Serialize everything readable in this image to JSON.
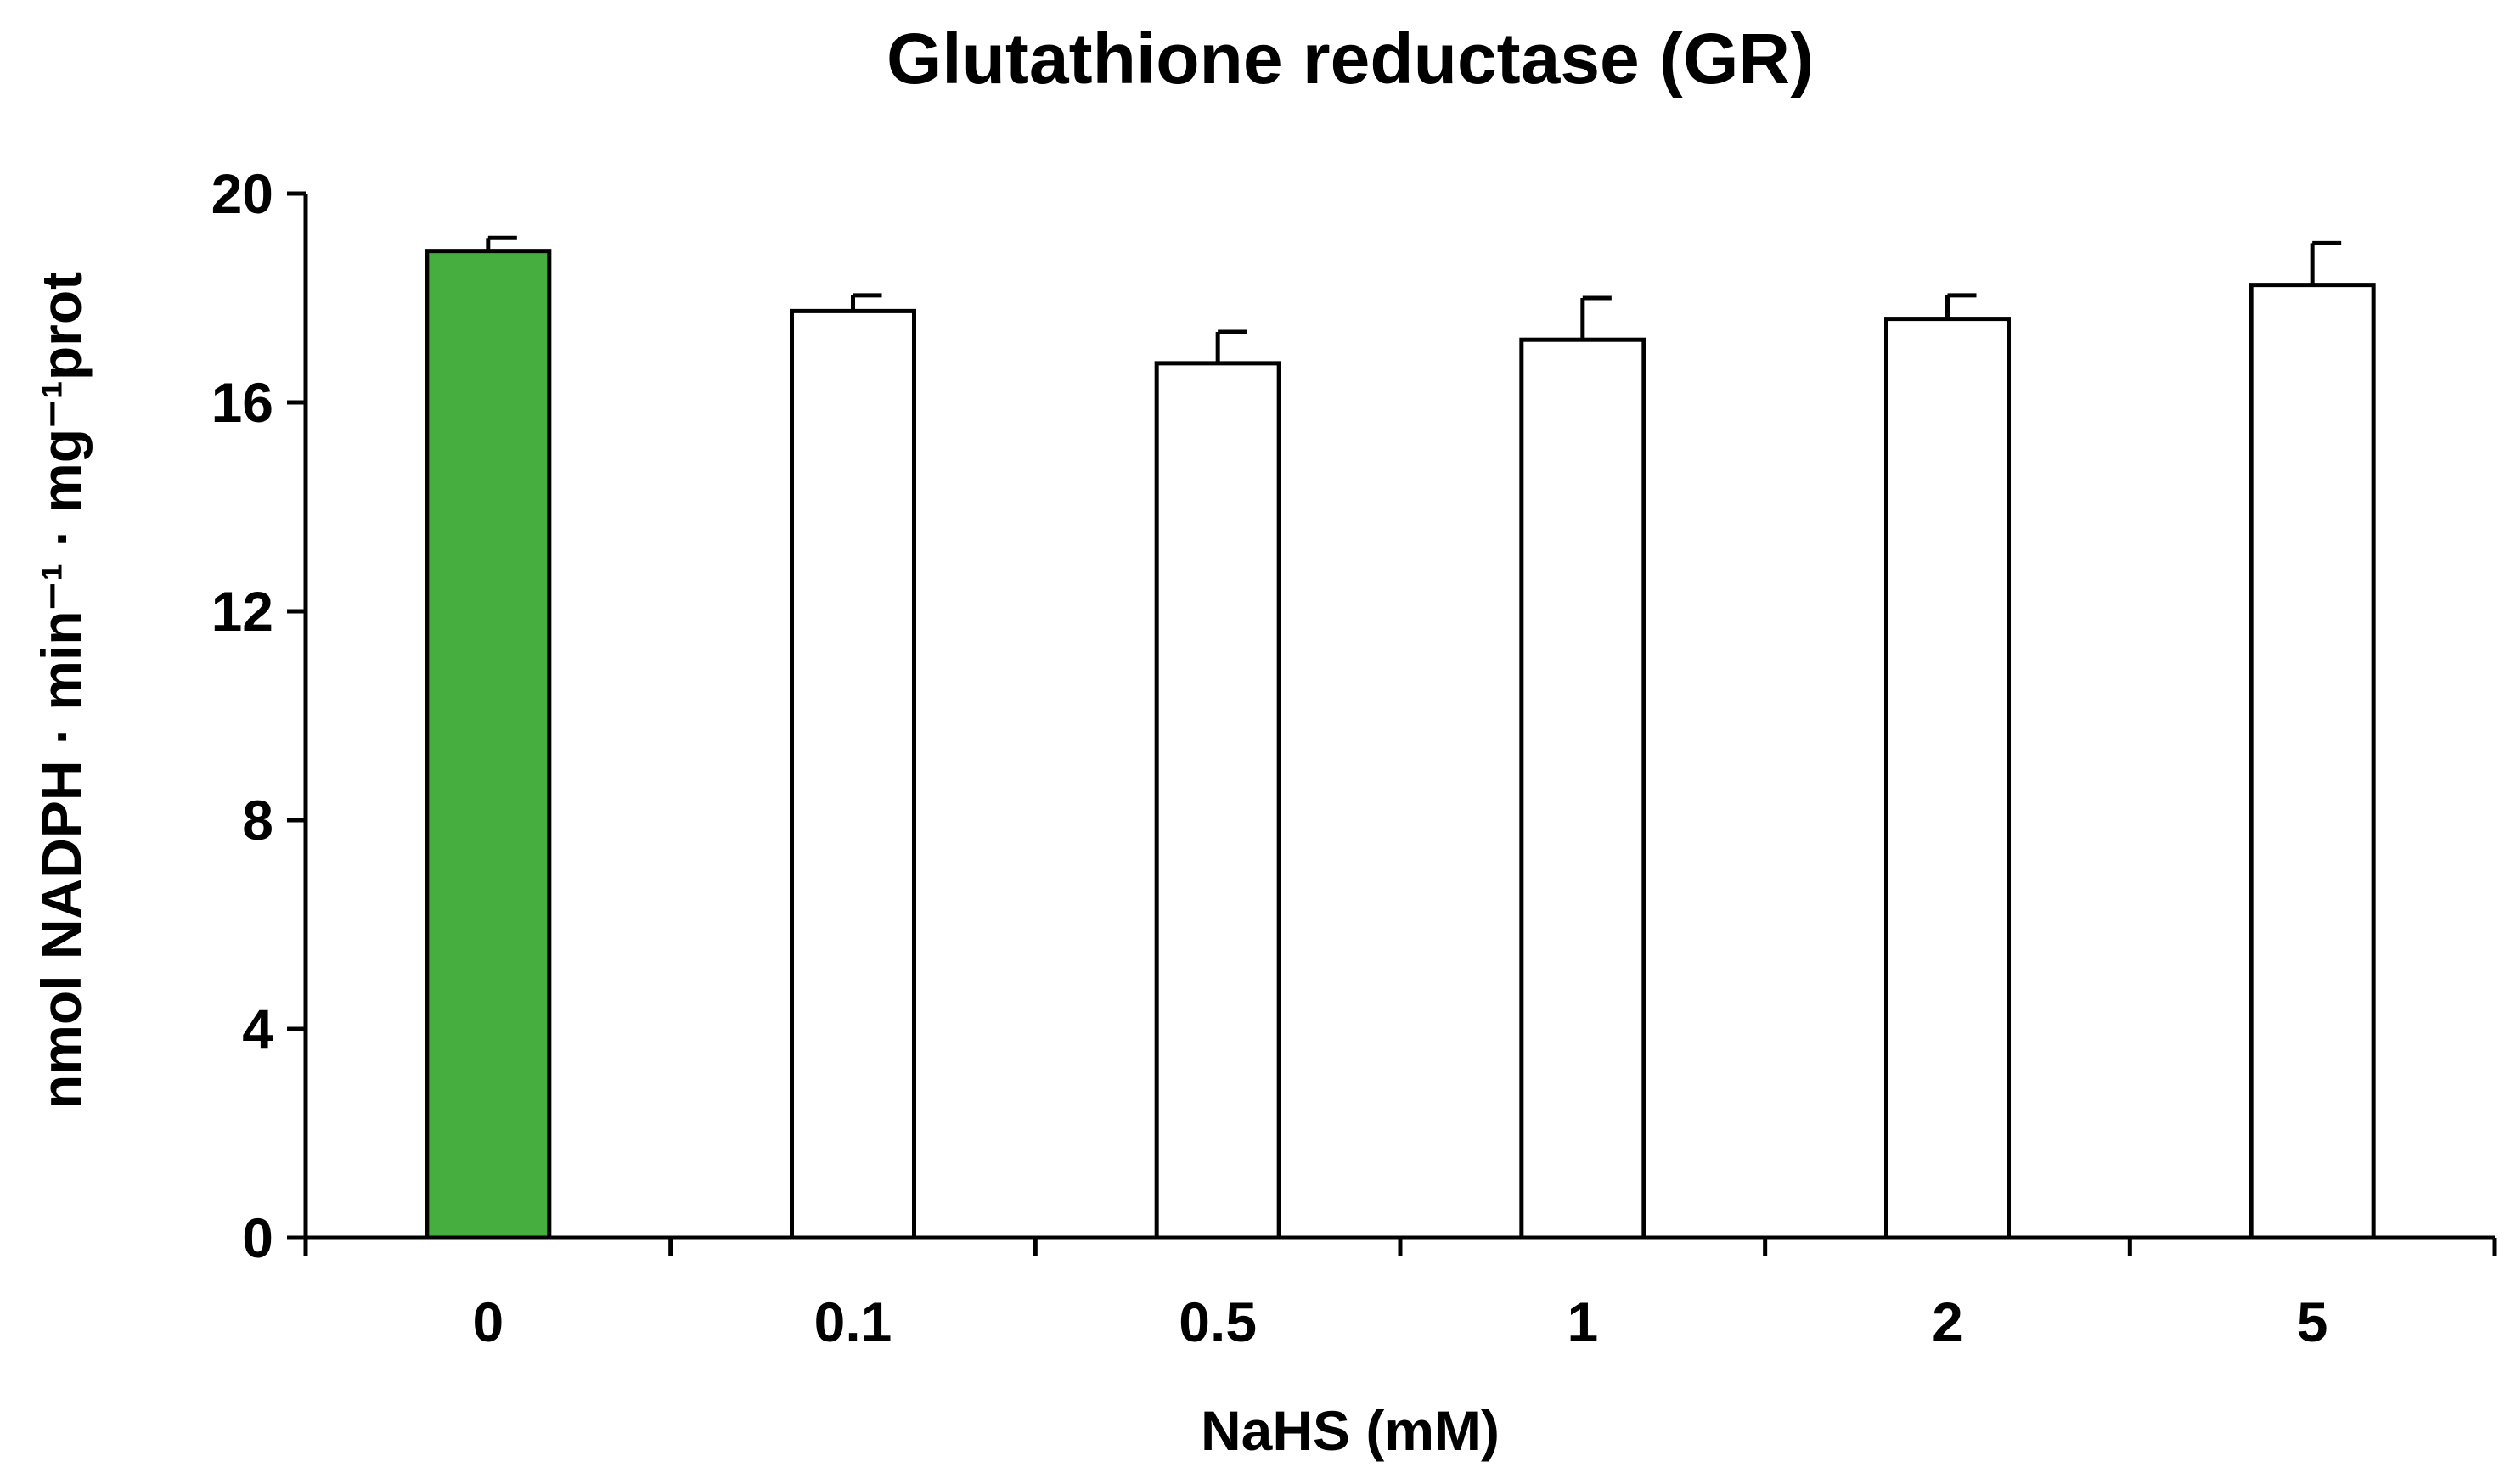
{
  "chart_data": {
    "type": "bar",
    "title": "Glutathione reductase (GR)",
    "xlabel": "NaHS (mM)",
    "ylabel": "nmol NADPH · min⁻¹ · mg⁻¹prot",
    "ylim": [
      0,
      20
    ],
    "yticks": [
      "0",
      "4",
      "8",
      "12",
      "16",
      "20"
    ],
    "categories": [
      "0",
      "0.1",
      "0.5",
      "1",
      "2",
      "5"
    ],
    "values": [
      18.9,
      17.75,
      16.75,
      17.2,
      17.6,
      18.25
    ],
    "errors": [
      0.25,
      0.3,
      0.6,
      0.8,
      0.45,
      0.8
    ],
    "bar_colors": [
      "#46AE3E",
      "#FFFFFF",
      "#FFFFFF",
      "#FFFFFF",
      "#FFFFFF",
      "#FFFFFF"
    ],
    "grid": false,
    "legend": "none"
  }
}
